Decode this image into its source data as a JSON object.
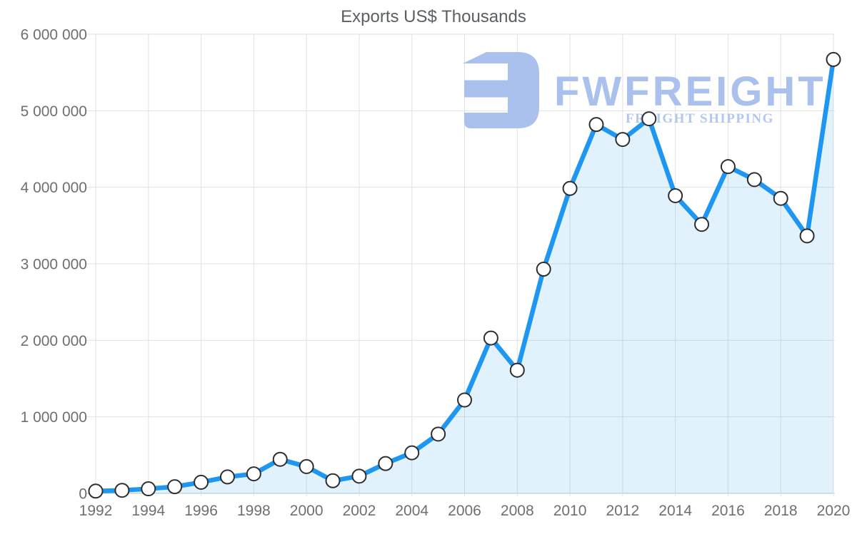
{
  "chart": {
    "title": "Exports US$ Thousands"
  },
  "watermark": {
    "brand": "FWFREIGHT",
    "tagline": "FREIGHT SHIPPING",
    "color": "#a9c1ec",
    "tagline_color": "#b4c8ee"
  },
  "chart_data": {
    "type": "line",
    "title": "Exports US$ Thousands",
    "series_name": "Exports US$ Thousands",
    "x": [
      1992,
      1993,
      1994,
      1995,
      1996,
      1997,
      1998,
      1999,
      2000,
      2001,
      2002,
      2003,
      2004,
      2005,
      2006,
      2007,
      2008,
      2009,
      2010,
      2011,
      2012,
      2013,
      2014,
      2015,
      2016,
      2017,
      2018,
      2019,
      2020
    ],
    "values": [
      30000,
      40000,
      60000,
      87000,
      145000,
      215000,
      255000,
      445000,
      350000,
      165000,
      225000,
      390000,
      530000,
      775000,
      1220000,
      2030000,
      1610000,
      2930000,
      3985000,
      4820000,
      4625000,
      4895000,
      3890000,
      3515000,
      4270000,
      4100000,
      3855000,
      3365000,
      5670000
    ],
    "x_tick_labels": [
      "1992",
      "1994",
      "1996",
      "1998",
      "2000",
      "2002",
      "2004",
      "2006",
      "2008",
      "2010",
      "2012",
      "2014",
      "2016",
      "2018",
      "2020"
    ],
    "y_ticks": [
      0,
      1000000,
      2000000,
      3000000,
      4000000,
      5000000,
      6000000
    ],
    "y_tick_labels": [
      "0",
      "1 000 000",
      "2 000 000",
      "3 000 000",
      "4 000 000",
      "5 000 000",
      "6 000 000"
    ],
    "ylim": [
      0,
      6000000
    ],
    "grid": true,
    "legend": "none",
    "line_color": "#1e97f3",
    "area_fill_rgba": "rgba(30,151,243,0.13)",
    "marker_fill": "#ffffff",
    "marker_stroke": "#2e2e2e"
  }
}
